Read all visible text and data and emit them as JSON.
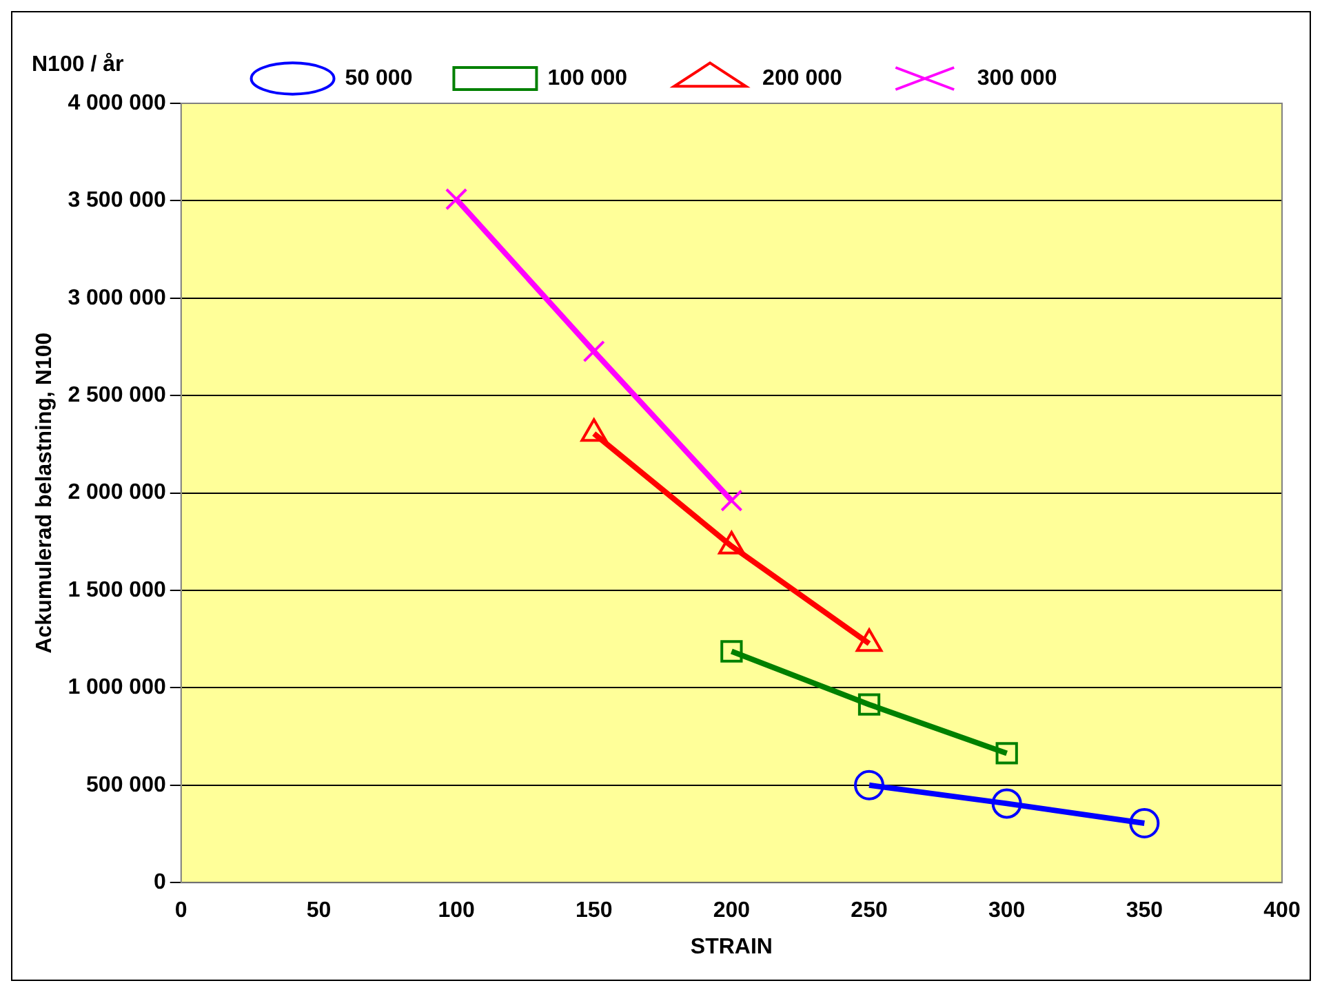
{
  "chart_data": {
    "type": "line",
    "xlabel": "STRAIN",
    "ylabel": "Ackumulerad belastning, N100",
    "legend_title": "N100 / år",
    "legend": "top",
    "grid": "y",
    "xlim": [
      0,
      400
    ],
    "xticks": [
      0,
      50,
      100,
      150,
      200,
      250,
      300,
      350,
      400
    ],
    "ylim": [
      0,
      4000000
    ],
    "yticks": [
      {
        "value": 0,
        "label": "0"
      },
      {
        "value": 500000,
        "label": "500 000"
      },
      {
        "value": 1000000,
        "label": "1 000 000"
      },
      {
        "value": 1500000,
        "label": "1 500 000"
      },
      {
        "value": 2000000,
        "label": "2 000 000"
      },
      {
        "value": 2500000,
        "label": "2 500 000"
      },
      {
        "value": 3000000,
        "label": "3 000 000"
      },
      {
        "value": 3500000,
        "label": "3 500 000"
      },
      {
        "value": 4000000,
        "label": "4 000 000"
      }
    ],
    "series": [
      {
        "name": "50 000",
        "color": "#0000ff",
        "marker": "circle",
        "x": [
          250,
          300,
          350
        ],
        "values": [
          500000,
          406000,
          305000
        ]
      },
      {
        "name": "100 000",
        "color": "#008000",
        "marker": "square",
        "x": [
          200,
          250,
          300
        ],
        "values": [
          1187000,
          914000,
          664000
        ]
      },
      {
        "name": "200 000",
        "color": "#ff0000",
        "marker": "triangle",
        "x": [
          150,
          200,
          250
        ],
        "values": [
          2305000,
          1727000,
          1227000
        ]
      },
      {
        "name": "300 000",
        "color": "#ff00ff",
        "marker": "cross",
        "x": [
          100,
          150,
          200
        ],
        "values": [
          3508000,
          2727000,
          1961000
        ]
      }
    ]
  }
}
